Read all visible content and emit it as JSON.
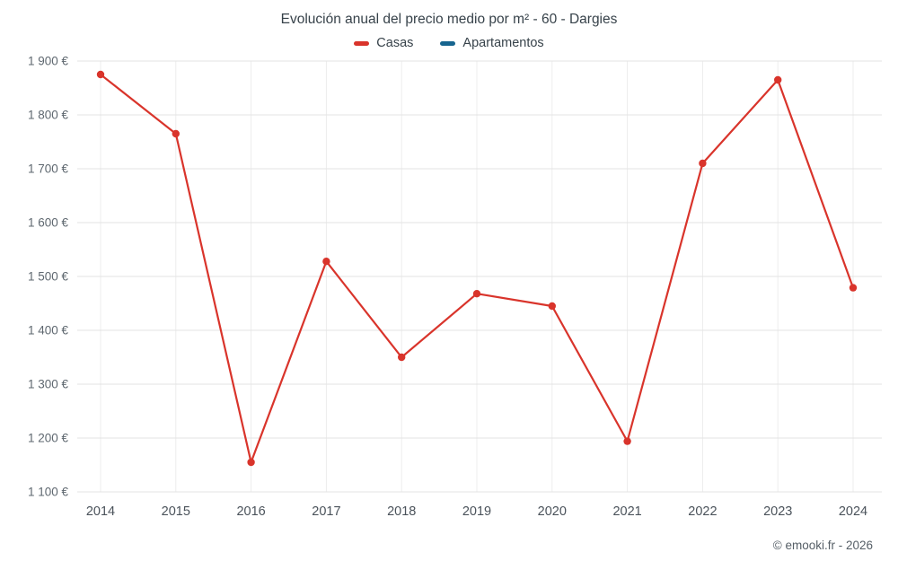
{
  "title": "Evolución anual del precio medio por m² - 60 - Dargies",
  "legend": [
    {
      "label": "Casas",
      "color": "#d9342b"
    },
    {
      "label": "Apartamentos",
      "color": "#17658f"
    }
  ],
  "footer": "© emooki.fr - 2026",
  "colors": {
    "casas": "#d9342b",
    "apartamentos": "#17658f",
    "gridline": "#e3e3e3",
    "vgridline": "#ededed",
    "axis_text": "#5f6870"
  },
  "chart_data": {
    "type": "line",
    "title": "Evolución anual del precio medio por m² - 60 - Dargies",
    "x": [
      2014,
      2015,
      2016,
      2017,
      2018,
      2019,
      2020,
      2021,
      2022,
      2023,
      2024
    ],
    "series": [
      {
        "name": "Casas",
        "color": "#d9342b",
        "values": [
          1875,
          1765,
          1155,
          1528,
          1350,
          1468,
          1445,
          1194,
          1710,
          1865,
          1479
        ]
      },
      {
        "name": "Apartamentos",
        "color": "#17658f",
        "values": []
      }
    ],
    "xlabel": "",
    "ylabel": "",
    "ylim": [
      1100,
      1900
    ],
    "ytick_step": 100,
    "ytick_labels": [
      "1 100 €",
      "1 200 €",
      "1 300 €",
      "1 400 €",
      "1 500 €",
      "1 600 €",
      "1 700 €",
      "1 800 €",
      "1 900 €"
    ],
    "grid": true,
    "legend_position": "top",
    "marker": "circle"
  }
}
